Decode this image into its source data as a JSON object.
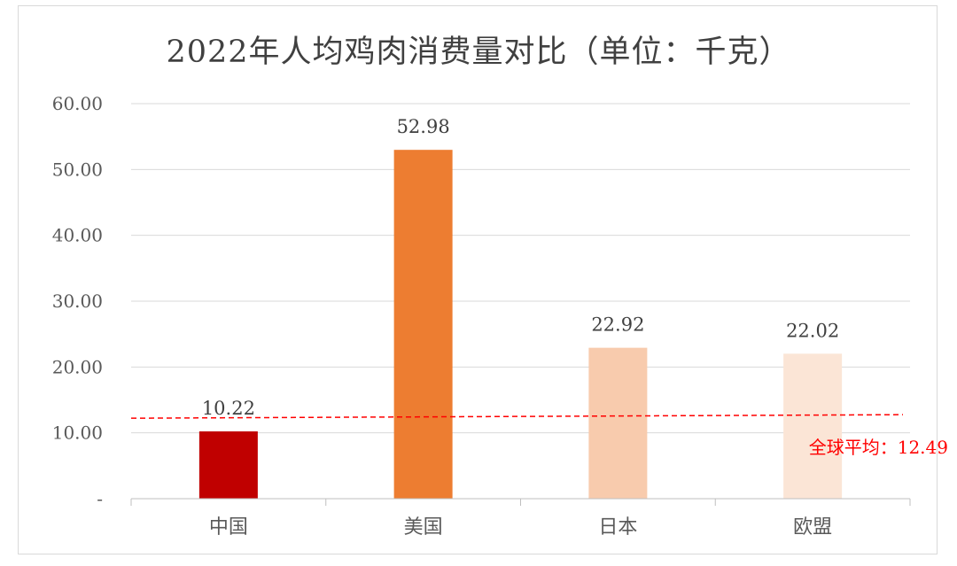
{
  "chart_data": {
    "type": "bar",
    "title": "2022年人均鸡肉消费量对比（单位：千克）",
    "categories": [
      "中国",
      "美国",
      "日本",
      "欧盟"
    ],
    "values": [
      10.22,
      52.98,
      22.92,
      22.02
    ],
    "data_labels": [
      "10.22",
      "52.98",
      "22.92",
      "22.02"
    ],
    "bar_colors": [
      "#c00000",
      "#ed7d31",
      "#f8cbad",
      "#fbe5d6"
    ],
    "y_tick_labels": [
      "-",
      "10.00",
      "20.00",
      "30.00",
      "40.00",
      "50.00",
      "60.00"
    ],
    "y_tick_values": [
      0,
      10,
      20,
      30,
      40,
      50,
      60
    ],
    "ylim": [
      0,
      60
    ],
    "grid": true,
    "reference_line": {
      "value": 12.49,
      "label": "全球平均：12.49",
      "color": "#ff0000",
      "style": "dashed"
    },
    "xlabel": "",
    "ylabel": ""
  }
}
